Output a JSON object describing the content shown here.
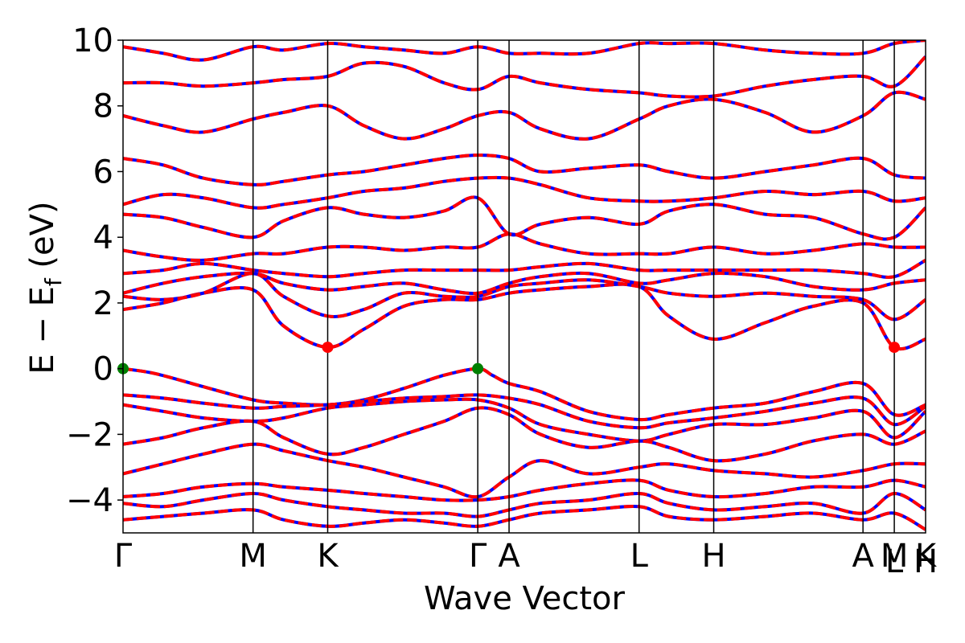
{
  "chart_data": {
    "type": "line",
    "title": "",
    "xlabel": "Wave Vector",
    "ylabel_parts": {
      "main": "E − E",
      "sub": "f",
      "unit": " (eV)"
    },
    "ylim": [
      -5,
      10
    ],
    "xlim": [
      0,
      1
    ],
    "grid": false,
    "y_ticks": [
      {
        "value": -4,
        "label": "−4"
      },
      {
        "value": -2,
        "label": "−2"
      },
      {
        "value": 0,
        "label": "0"
      },
      {
        "value": 2,
        "label": "2"
      },
      {
        "value": 4,
        "label": "4"
      },
      {
        "value": 6,
        "label": "6"
      },
      {
        "value": 8,
        "label": "8"
      },
      {
        "value": 10,
        "label": "10"
      }
    ],
    "kpoints": [
      {
        "label": "Γ",
        "x": 0.0
      },
      {
        "label": "M",
        "x": 0.162
      },
      {
        "label": "K",
        "x": 0.255
      },
      {
        "label": "Γ",
        "x": 0.442
      },
      {
        "label": "A",
        "x": 0.481
      },
      {
        "label": "L",
        "x": 0.643
      },
      {
        "label": "H",
        "x": 0.736
      },
      {
        "label": "A",
        "x": 0.922
      },
      {
        "label": "M",
        "x": 0.961
      },
      {
        "label": "K",
        "x": 1.0
      }
    ],
    "extra_tick_labels": [
      {
        "label": "L",
        "x": 0.961
      },
      {
        "label": "H",
        "x": 1.0
      }
    ],
    "series_colors": {
      "band_main": "#ff0000",
      "band_dash": "#0000ff"
    },
    "special_points": [
      {
        "kind": "vbm",
        "x": 0.0,
        "y": 0.0,
        "color": "#008000"
      },
      {
        "kind": "vbm",
        "x": 0.442,
        "y": 0.0,
        "color": "#008000"
      },
      {
        "kind": "cbm",
        "x": 0.255,
        "y": 0.65,
        "color": "#ff0000"
      },
      {
        "kind": "cbm",
        "x": 0.961,
        "y": 0.65,
        "color": "#ff0000"
      }
    ],
    "bands": [
      {
        "name": "v1",
        "x": [
          0,
          0.04,
          0.1,
          0.162,
          0.2,
          0.255,
          0.3,
          0.35,
          0.4,
          0.442,
          0.46,
          0.481,
          0.52,
          0.58,
          0.643,
          0.68,
          0.736,
          0.8,
          0.86,
          0.922,
          0.961,
          1.0
        ],
        "y": [
          0.0,
          -0.15,
          -0.55,
          -0.95,
          -1.05,
          -1.1,
          -0.95,
          -0.6,
          -0.2,
          0.0,
          -0.2,
          -0.45,
          -0.7,
          -1.3,
          -1.55,
          -1.4,
          -1.2,
          -1.05,
          -0.7,
          -0.45,
          -1.4,
          -1.1
        ]
      },
      {
        "name": "v2",
        "x": [
          0,
          0.05,
          0.1,
          0.162,
          0.2,
          0.255,
          0.3,
          0.35,
          0.4,
          0.442,
          0.481,
          0.52,
          0.58,
          0.643,
          0.68,
          0.736,
          0.8,
          0.86,
          0.922,
          0.961,
          1.0
        ],
        "y": [
          -0.8,
          -0.9,
          -1.05,
          -1.2,
          -1.15,
          -1.1,
          -1.0,
          -0.9,
          -0.85,
          -0.8,
          -0.9,
          -1.1,
          -1.6,
          -1.8,
          -1.65,
          -1.5,
          -1.3,
          -1.05,
          -0.9,
          -1.7,
          -1.15
        ]
      },
      {
        "name": "v3",
        "x": [
          0,
          0.05,
          0.1,
          0.162,
          0.2,
          0.255,
          0.3,
          0.35,
          0.4,
          0.442,
          0.481,
          0.52,
          0.58,
          0.643,
          0.68,
          0.736,
          0.8,
          0.86,
          0.922,
          0.961,
          1.0
        ],
        "y": [
          -1.1,
          -1.3,
          -1.5,
          -1.6,
          -1.5,
          -1.2,
          -1.1,
          -1.0,
          -0.95,
          -0.95,
          -1.2,
          -1.7,
          -2.0,
          -2.2,
          -2.0,
          -1.7,
          -1.7,
          -1.5,
          -1.3,
          -2.1,
          -1.3
        ]
      },
      {
        "name": "v4",
        "x": [
          0,
          0.05,
          0.1,
          0.162,
          0.2,
          0.255,
          0.3,
          0.35,
          0.4,
          0.442,
          0.481,
          0.52,
          0.58,
          0.643,
          0.68,
          0.736,
          0.8,
          0.86,
          0.922,
          0.961,
          1.0
        ],
        "y": [
          -2.3,
          -2.1,
          -1.8,
          -1.6,
          -2.1,
          -2.6,
          -2.4,
          -2.0,
          -1.6,
          -1.2,
          -1.4,
          -2.0,
          -2.4,
          -2.2,
          -2.4,
          -2.8,
          -2.6,
          -2.2,
          -2.0,
          -2.3,
          -1.9
        ]
      },
      {
        "name": "v5",
        "x": [
          0,
          0.05,
          0.1,
          0.162,
          0.2,
          0.255,
          0.3,
          0.35,
          0.4,
          0.442,
          0.481,
          0.52,
          0.58,
          0.643,
          0.68,
          0.736,
          0.8,
          0.86,
          0.922,
          0.961,
          1.0
        ],
        "y": [
          -3.2,
          -2.9,
          -2.6,
          -2.3,
          -2.5,
          -2.8,
          -3.0,
          -3.3,
          -3.6,
          -3.9,
          -3.3,
          -2.8,
          -3.2,
          -3.0,
          -2.9,
          -3.1,
          -3.2,
          -3.3,
          -3.1,
          -2.9,
          -2.9
        ]
      },
      {
        "name": "v6",
        "x": [
          0,
          0.05,
          0.1,
          0.162,
          0.2,
          0.255,
          0.3,
          0.35,
          0.4,
          0.442,
          0.481,
          0.52,
          0.58,
          0.643,
          0.68,
          0.736,
          0.8,
          0.86,
          0.922,
          0.961,
          1.0
        ],
        "y": [
          -3.9,
          -3.8,
          -3.6,
          -3.5,
          -3.6,
          -3.7,
          -3.8,
          -3.9,
          -4.0,
          -4.0,
          -3.9,
          -3.7,
          -3.5,
          -3.4,
          -3.7,
          -3.9,
          -3.8,
          -3.6,
          -3.6,
          -3.4,
          -3.6
        ]
      },
      {
        "name": "v7",
        "x": [
          0,
          0.05,
          0.1,
          0.162,
          0.2,
          0.255,
          0.3,
          0.35,
          0.4,
          0.442,
          0.481,
          0.52,
          0.58,
          0.643,
          0.68,
          0.736,
          0.8,
          0.86,
          0.922,
          0.961,
          1.0
        ],
        "y": [
          -4.1,
          -4.2,
          -4.0,
          -3.8,
          -4.0,
          -4.2,
          -4.3,
          -4.4,
          -4.4,
          -4.5,
          -4.3,
          -4.1,
          -4.0,
          -3.8,
          -4.1,
          -4.3,
          -4.2,
          -4.1,
          -4.4,
          -3.8,
          -4.3
        ]
      },
      {
        "name": "v8",
        "x": [
          0,
          0.05,
          0.1,
          0.162,
          0.2,
          0.255,
          0.3,
          0.35,
          0.4,
          0.442,
          0.481,
          0.52,
          0.58,
          0.643,
          0.68,
          0.736,
          0.8,
          0.86,
          0.922,
          0.961,
          1.0
        ],
        "y": [
          -4.6,
          -4.5,
          -4.4,
          -4.3,
          -4.6,
          -4.8,
          -4.7,
          -4.6,
          -4.7,
          -4.8,
          -4.6,
          -4.4,
          -4.3,
          -4.2,
          -4.5,
          -4.6,
          -4.5,
          -4.4,
          -4.6,
          -4.4,
          -4.9
        ]
      },
      {
        "name": "c1",
        "x": [
          0,
          0.05,
          0.1,
          0.162,
          0.2,
          0.255,
          0.3,
          0.35,
          0.4,
          0.442,
          0.481,
          0.52,
          0.58,
          0.643,
          0.68,
          0.736,
          0.8,
          0.86,
          0.922,
          0.961,
          1.0
        ],
        "y": [
          1.8,
          2.0,
          2.3,
          2.4,
          1.3,
          0.65,
          1.2,
          1.9,
          2.1,
          2.1,
          2.3,
          2.4,
          2.5,
          2.5,
          1.6,
          0.9,
          1.4,
          1.9,
          2.0,
          0.65,
          0.9
        ]
      },
      {
        "name": "c2",
        "x": [
          0,
          0.05,
          0.1,
          0.162,
          0.2,
          0.255,
          0.3,
          0.35,
          0.4,
          0.442,
          0.481,
          0.52,
          0.58,
          0.643,
          0.68,
          0.736,
          0.8,
          0.86,
          0.922,
          0.961,
          1.0
        ],
        "y": [
          2.2,
          2.1,
          2.3,
          2.9,
          2.2,
          1.6,
          1.8,
          2.3,
          2.2,
          2.2,
          2.5,
          2.6,
          2.7,
          2.5,
          2.3,
          2.2,
          2.3,
          2.2,
          2.1,
          1.5,
          2.1
        ]
      },
      {
        "name": "c3",
        "x": [
          0,
          0.05,
          0.1,
          0.162,
          0.2,
          0.255,
          0.3,
          0.35,
          0.4,
          0.442,
          0.481,
          0.52,
          0.58,
          0.643,
          0.68,
          0.736,
          0.8,
          0.86,
          0.922,
          0.961,
          1.0
        ],
        "y": [
          2.3,
          2.6,
          2.8,
          2.9,
          2.6,
          2.4,
          2.5,
          2.6,
          2.4,
          2.3,
          2.6,
          2.8,
          2.9,
          2.6,
          2.7,
          2.9,
          2.8,
          2.5,
          2.4,
          2.6,
          2.7
        ]
      },
      {
        "name": "c4",
        "x": [
          0,
          0.05,
          0.1,
          0.162,
          0.2,
          0.255,
          0.3,
          0.35,
          0.4,
          0.442,
          0.481,
          0.52,
          0.58,
          0.643,
          0.68,
          0.736,
          0.8,
          0.86,
          0.922,
          0.961,
          1.0
        ],
        "y": [
          2.9,
          3.0,
          3.2,
          3.0,
          2.9,
          2.8,
          2.9,
          3.0,
          3.0,
          3.0,
          3.0,
          3.1,
          3.2,
          3.0,
          3.0,
          3.0,
          3.0,
          3.0,
          2.9,
          2.8,
          3.3
        ]
      },
      {
        "name": "c5",
        "x": [
          0,
          0.05,
          0.1,
          0.162,
          0.2,
          0.255,
          0.3,
          0.35,
          0.4,
          0.442,
          0.481,
          0.52,
          0.58,
          0.643,
          0.68,
          0.736,
          0.8,
          0.86,
          0.922,
          0.961,
          1.0
        ],
        "y": [
          3.6,
          3.4,
          3.3,
          3.5,
          3.5,
          3.7,
          3.7,
          3.6,
          3.7,
          3.7,
          4.1,
          3.8,
          3.5,
          3.5,
          3.5,
          3.7,
          3.5,
          3.6,
          3.8,
          3.7,
          3.7
        ]
      },
      {
        "name": "c6",
        "x": [
          0,
          0.05,
          0.1,
          0.162,
          0.2,
          0.255,
          0.3,
          0.35,
          0.4,
          0.442,
          0.481,
          0.52,
          0.58,
          0.643,
          0.68,
          0.736,
          0.8,
          0.86,
          0.922,
          0.961,
          1.0
        ],
        "y": [
          4.7,
          4.6,
          4.3,
          4.0,
          4.5,
          4.9,
          4.7,
          4.6,
          4.8,
          5.2,
          4.1,
          4.4,
          4.6,
          4.4,
          4.8,
          5.0,
          4.7,
          4.6,
          4.1,
          4.0,
          4.9
        ]
      },
      {
        "name": "c7",
        "x": [
          0,
          0.05,
          0.1,
          0.162,
          0.2,
          0.255,
          0.3,
          0.35,
          0.4,
          0.442,
          0.481,
          0.52,
          0.58,
          0.643,
          0.68,
          0.736,
          0.8,
          0.86,
          0.922,
          0.961,
          1.0
        ],
        "y": [
          5.0,
          5.3,
          5.2,
          4.9,
          5.0,
          5.2,
          5.4,
          5.5,
          5.7,
          5.8,
          5.8,
          5.6,
          5.2,
          5.1,
          5.1,
          5.2,
          5.4,
          5.3,
          5.4,
          5.1,
          5.2
        ]
      },
      {
        "name": "c8",
        "x": [
          0,
          0.05,
          0.1,
          0.162,
          0.2,
          0.255,
          0.3,
          0.35,
          0.4,
          0.442,
          0.481,
          0.52,
          0.58,
          0.643,
          0.68,
          0.736,
          0.8,
          0.86,
          0.922,
          0.961,
          1.0
        ],
        "y": [
          6.4,
          6.2,
          5.8,
          5.6,
          5.7,
          5.9,
          6.0,
          6.2,
          6.4,
          6.5,
          6.4,
          6.0,
          6.1,
          6.2,
          6.0,
          5.8,
          6.0,
          6.2,
          6.4,
          5.9,
          5.8
        ]
      },
      {
        "name": "c9",
        "x": [
          0,
          0.05,
          0.1,
          0.162,
          0.2,
          0.255,
          0.3,
          0.35,
          0.4,
          0.442,
          0.481,
          0.52,
          0.58,
          0.643,
          0.68,
          0.736,
          0.8,
          0.86,
          0.922,
          0.961,
          1.0
        ],
        "y": [
          7.7,
          7.4,
          7.2,
          7.6,
          7.8,
          8.0,
          7.4,
          7.0,
          7.3,
          7.7,
          7.8,
          7.3,
          7.0,
          7.6,
          8.0,
          8.2,
          7.8,
          7.2,
          7.7,
          8.4,
          8.2
        ]
      },
      {
        "name": "c10",
        "x": [
          0,
          0.05,
          0.1,
          0.162,
          0.2,
          0.255,
          0.3,
          0.35,
          0.4,
          0.442,
          0.481,
          0.52,
          0.58,
          0.643,
          0.68,
          0.736,
          0.8,
          0.86,
          0.922,
          0.961,
          1.0
        ],
        "y": [
          8.7,
          8.7,
          8.6,
          8.7,
          8.8,
          8.9,
          9.3,
          9.2,
          8.7,
          8.5,
          8.9,
          8.7,
          8.5,
          8.4,
          8.3,
          8.3,
          8.6,
          8.8,
          8.9,
          8.6,
          9.5
        ]
      },
      {
        "name": "c11",
        "x": [
          0,
          0.05,
          0.1,
          0.162,
          0.2,
          0.255,
          0.3,
          0.35,
          0.4,
          0.442,
          0.481,
          0.52,
          0.58,
          0.643,
          0.68,
          0.736,
          0.8,
          0.86,
          0.922,
          0.961,
          1.0
        ],
        "y": [
          9.8,
          9.6,
          9.4,
          9.8,
          9.7,
          9.9,
          9.8,
          9.7,
          9.6,
          9.8,
          9.6,
          9.6,
          9.6,
          9.9,
          9.9,
          9.9,
          9.7,
          9.6,
          9.6,
          9.9,
          10.0
        ]
      }
    ]
  }
}
